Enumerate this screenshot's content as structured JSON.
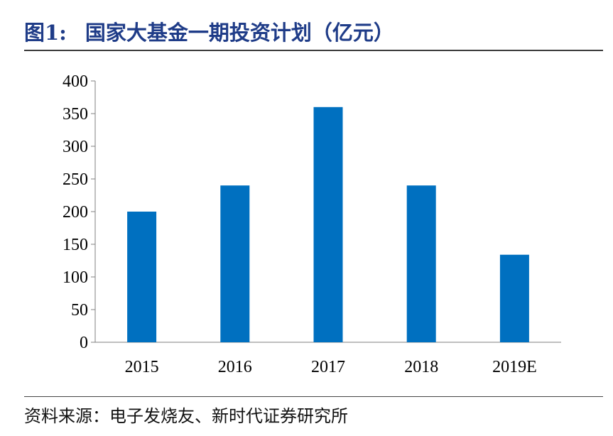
{
  "header": {
    "figure_label": "图1:",
    "title": "国家大基金一期投资计划（亿元）"
  },
  "footer": {
    "source": "资料来源：电子发烧友、新时代证券研究所"
  },
  "chart_data": {
    "type": "bar",
    "title": "",
    "xlabel": "",
    "ylabel": "",
    "categories": [
      "2015",
      "2016",
      "2017",
      "2018",
      "2019E"
    ],
    "values": [
      200,
      240,
      360,
      240,
      134
    ],
    "ylim": [
      0,
      400
    ],
    "yticks": [
      0,
      50,
      100,
      150,
      200,
      250,
      300,
      350,
      400
    ],
    "grid": false,
    "legend": "none",
    "bar_color": "#0070c0"
  }
}
